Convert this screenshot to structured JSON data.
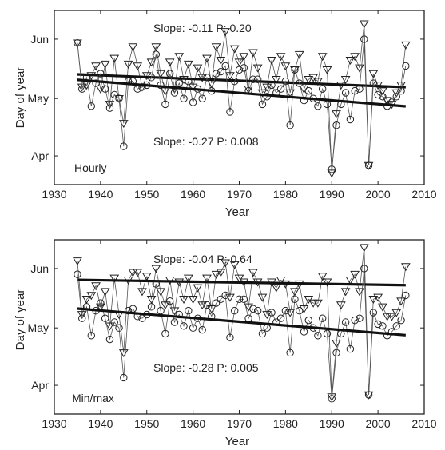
{
  "chart_data": [
    {
      "type": "line",
      "panel_label": "Hourly",
      "xlabel": "Year",
      "ylabel": "Day of year",
      "xlim": [
        1930,
        2010
      ],
      "ylim": [
        76,
        167
      ],
      "xticks": [
        1930,
        1940,
        1950,
        1960,
        1970,
        1980,
        1990,
        2000,
        2010
      ],
      "yticks": [
        {
          "value": 91,
          "label": "Apr"
        },
        {
          "value": 121,
          "label": "May"
        },
        {
          "value": 152,
          "label": "Jun"
        }
      ],
      "grid": false,
      "annotations": [
        "Slope: -0.11 P: 0.20",
        "Slope: -0.27  P: 0.008"
      ],
      "x": [
        1935,
        1936,
        1937,
        1938,
        1939,
        1940,
        1941,
        1942,
        1943,
        1944,
        1945,
        1946,
        1947,
        1948,
        1949,
        1950,
        1951,
        1952,
        1953,
        1954,
        1955,
        1956,
        1957,
        1958,
        1959,
        1960,
        1961,
        1962,
        1963,
        1964,
        1965,
        1966,
        1967,
        1968,
        1969,
        1970,
        1971,
        1972,
        1973,
        1974,
        1975,
        1976,
        1977,
        1978,
        1979,
        1980,
        1981,
        1982,
        1983,
        1984,
        1985,
        1986,
        1987,
        1988,
        1989,
        1990,
        1991,
        1992,
        1993,
        1994,
        1995,
        1996,
        1997,
        1998,
        1999,
        2000,
        2001,
        2002,
        2003,
        2004,
        2005,
        2006
      ],
      "series": [
        {
          "marker": "triangle",
          "values": [
            150,
            127,
            128,
            133,
            138,
            126,
            139,
            118,
            142,
            121,
            108,
            139,
            148,
            138,
            127,
            133,
            140,
            148,
            134,
            125,
            140,
            126,
            143,
            131,
            139,
            127,
            137,
            132,
            142,
            129,
            148,
            141,
            156,
            133,
            147,
            140,
            143,
            126,
            145,
            137,
            124,
            127,
            141,
            131,
            143,
            138,
            124,
            136,
            144,
            126,
            131,
            132,
            130,
            143,
            136,
            82,
            113,
            128,
            131,
            141,
            143,
            137,
            160,
            86,
            134,
            128,
            125,
            120,
            118,
            124,
            128,
            149
          ],
          "trend": [
            133.6,
            126.9
          ]
        },
        {
          "marker": "circle",
          "values": [
            150,
            126,
            132,
            117,
            129,
            134,
            126,
            116,
            123,
            121,
            96,
            130,
            130,
            126,
            127,
            128,
            132,
            144,
            128,
            118,
            134,
            124,
            129,
            121,
            130,
            119,
            126,
            121,
            132,
            125,
            134,
            135,
            138,
            114,
            130,
            136,
            137,
            125,
            131,
            131,
            118,
            122,
            128,
            124,
            126,
            130,
            107,
            136,
            129,
            120,
            125,
            121,
            117,
            126,
            118,
            84,
            107,
            118,
            124,
            110,
            125,
            126,
            152,
            86,
            129,
            123,
            122,
            117,
            119,
            122,
            125,
            138
          ],
          "trend": [
            130.8,
            116.9
          ]
        }
      ]
    },
    {
      "type": "line",
      "panel_label": "Min/max",
      "xlabel": "Year",
      "ylabel": "Day of year",
      "xlim": [
        1930,
        2010
      ],
      "ylim": [
        76,
        167
      ],
      "xticks": [
        1930,
        1940,
        1950,
        1960,
        1970,
        1980,
        1990,
        2000,
        2010
      ],
      "yticks": [
        {
          "value": 91,
          "label": "Apr"
        },
        {
          "value": 121,
          "label": "May"
        },
        {
          "value": 152,
          "label": "Jun"
        }
      ],
      "grid": false,
      "annotations": [
        "Slope: -0.04  P: 0.64",
        "Slope: -0.28  P: 0.005"
      ],
      "x": [
        1935,
        1936,
        1937,
        1938,
        1939,
        1940,
        1941,
        1942,
        1943,
        1944,
        1945,
        1946,
        1947,
        1948,
        1949,
        1950,
        1951,
        1952,
        1953,
        1954,
        1955,
        1956,
        1957,
        1958,
        1959,
        1960,
        1961,
        1962,
        1963,
        1964,
        1965,
        1966,
        1967,
        1968,
        1969,
        1970,
        1971,
        1972,
        1973,
        1974,
        1975,
        1976,
        1977,
        1978,
        1979,
        1980,
        1981,
        1982,
        1983,
        1984,
        1985,
        1986,
        1987,
        1988,
        1989,
        1990,
        1991,
        1992,
        1993,
        1994,
        1995,
        1996,
        1997,
        1998,
        1999,
        2000,
        2001,
        2002,
        2003,
        2004,
        2005,
        2006
      ],
      "series": [
        {
          "marker": "triangle",
          "values": [
            156,
            128,
            136,
            138,
            143,
            132,
            140,
            122,
            147,
            128,
            108,
            146,
            150,
            150,
            140,
            148,
            136,
            152,
            140,
            133,
            146,
            130,
            145,
            136,
            147,
            136,
            142,
            133,
            147,
            131,
            149,
            150,
            155,
            137,
            154,
            147,
            145,
            132,
            150,
            145,
            137,
            128,
            145,
            142,
            146,
            144,
            129,
            140,
            144,
            131,
            136,
            134,
            134,
            148,
            145,
            85,
            113,
            133,
            140,
            146,
            149,
            140,
            163,
            86,
            136,
            137,
            132,
            127,
            127,
            129,
            135,
            153
          ],
          "trend": [
            146.1,
            143.3
          ]
        },
        {
          "marker": "circle",
          "values": [
            149,
            126,
            132,
            117,
            130,
            134,
            126,
            115,
            124,
            121,
            95,
            130,
            131,
            127,
            126,
            128,
            132,
            144,
            130,
            118,
            135,
            124,
            128,
            122,
            130,
            121,
            126,
            120,
            133,
            127,
            134,
            136,
            138,
            116,
            130,
            136,
            136,
            126,
            131,
            130,
            118,
            121,
            129,
            124,
            126,
            130,
            108,
            136,
            130,
            119,
            125,
            121,
            117,
            126,
            118,
            84,
            108,
            118,
            124,
            110,
            125,
            126,
            152,
            86,
            129,
            123,
            122,
            117,
            119,
            122,
            125,
            138
          ],
          "trend": [
            131.1,
            117.2
          ]
        }
      ]
    }
  ]
}
